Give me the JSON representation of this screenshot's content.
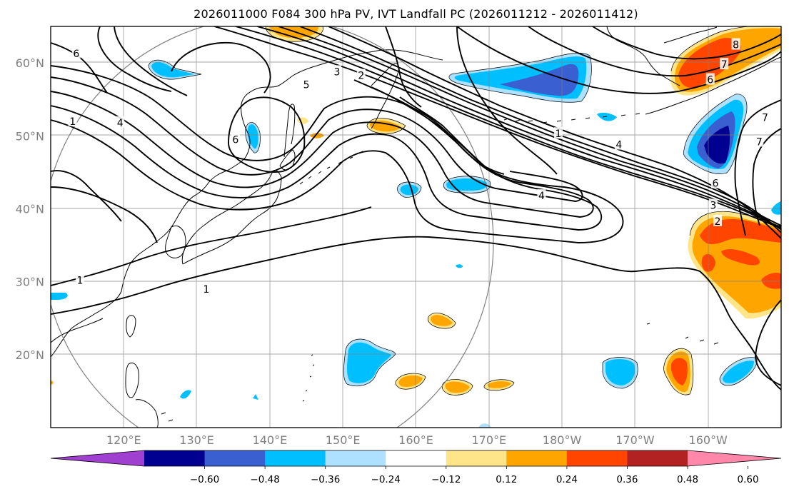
{
  "title": "2026011000 F084 300 hPa PV, IVT Landfall PC (2026011212 - 2026011412)",
  "map": {
    "extent": {
      "lon_min": 110,
      "lon_max": 210,
      "lat_min": 10,
      "lat_max": 65
    },
    "lat_ticks": [
      {
        "lat": 60,
        "label": "60°N"
      },
      {
        "lat": 50,
        "label": "50°N"
      },
      {
        "lat": 40,
        "label": "40°N"
      },
      {
        "lat": 30,
        "label": "30°N"
      },
      {
        "lat": 20,
        "label": "20°N"
      }
    ],
    "lon_ticks": [
      {
        "lon": 120,
        "label": "120°E"
      },
      {
        "lon": 130,
        "label": "130°E"
      },
      {
        "lon": 140,
        "label": "140°E"
      },
      {
        "lon": 150,
        "label": "150°E"
      },
      {
        "lon": 160,
        "label": "160°E"
      },
      {
        "lon": 170,
        "label": "170°E"
      },
      {
        "lon": 180,
        "label": "180°W"
      },
      {
        "lon": 190,
        "label": "170°W"
      },
      {
        "lon": 200,
        "label": "160°W"
      }
    ],
    "pv_contour_labels": [
      {
        "text": "6",
        "lon": 113.5,
        "lat": 61.3
      },
      {
        "text": "1",
        "lon": 113.0,
        "lat": 52.0
      },
      {
        "text": "4",
        "lon": 119.5,
        "lat": 51.8
      },
      {
        "text": "5",
        "lon": 145.0,
        "lat": 57.0
      },
      {
        "text": "3",
        "lon": 149.2,
        "lat": 58.8
      },
      {
        "text": "2",
        "lon": 152.5,
        "lat": 58.3
      },
      {
        "text": "6",
        "lon": 135.3,
        "lat": 49.5
      },
      {
        "text": "1",
        "lon": 179.5,
        "lat": 50.3
      },
      {
        "text": "4",
        "lon": 187.8,
        "lat": 48.8
      },
      {
        "text": "4",
        "lon": 177.2,
        "lat": 41.8
      },
      {
        "text": "8",
        "lon": 203.8,
        "lat": 62.5
      },
      {
        "text": "7",
        "lon": 202.2,
        "lat": 59.8
      },
      {
        "text": "6",
        "lon": 200.3,
        "lat": 57.7
      },
      {
        "text": "7",
        "lon": 207.8,
        "lat": 52.5
      },
      {
        "text": "7",
        "lon": 207.0,
        "lat": 49.2
      },
      {
        "text": "6",
        "lon": 201.0,
        "lat": 43.5
      },
      {
        "text": "3",
        "lon": 200.7,
        "lat": 40.5
      },
      {
        "text": "2",
        "lon": 201.3,
        "lat": 38.3
      },
      {
        "text": "1",
        "lon": 114.0,
        "lat": 30.2
      },
      {
        "text": "1",
        "lon": 131.3,
        "lat": 29.0
      }
    ]
  },
  "colorbar": {
    "colors": [
      "#9f40d0",
      "#000090",
      "#3a5fd0",
      "#00bfff",
      "#aee0ff",
      "#ffffff",
      "#ffe58a",
      "#ffa500",
      "#ff4500",
      "#b22222",
      "#ff88aa"
    ],
    "tick_labels": [
      "−0.60",
      "−0.48",
      "−0.36",
      "−0.24",
      "−0.12",
      "0.12",
      "0.24",
      "0.36",
      "0.48",
      "0.60"
    ]
  }
}
